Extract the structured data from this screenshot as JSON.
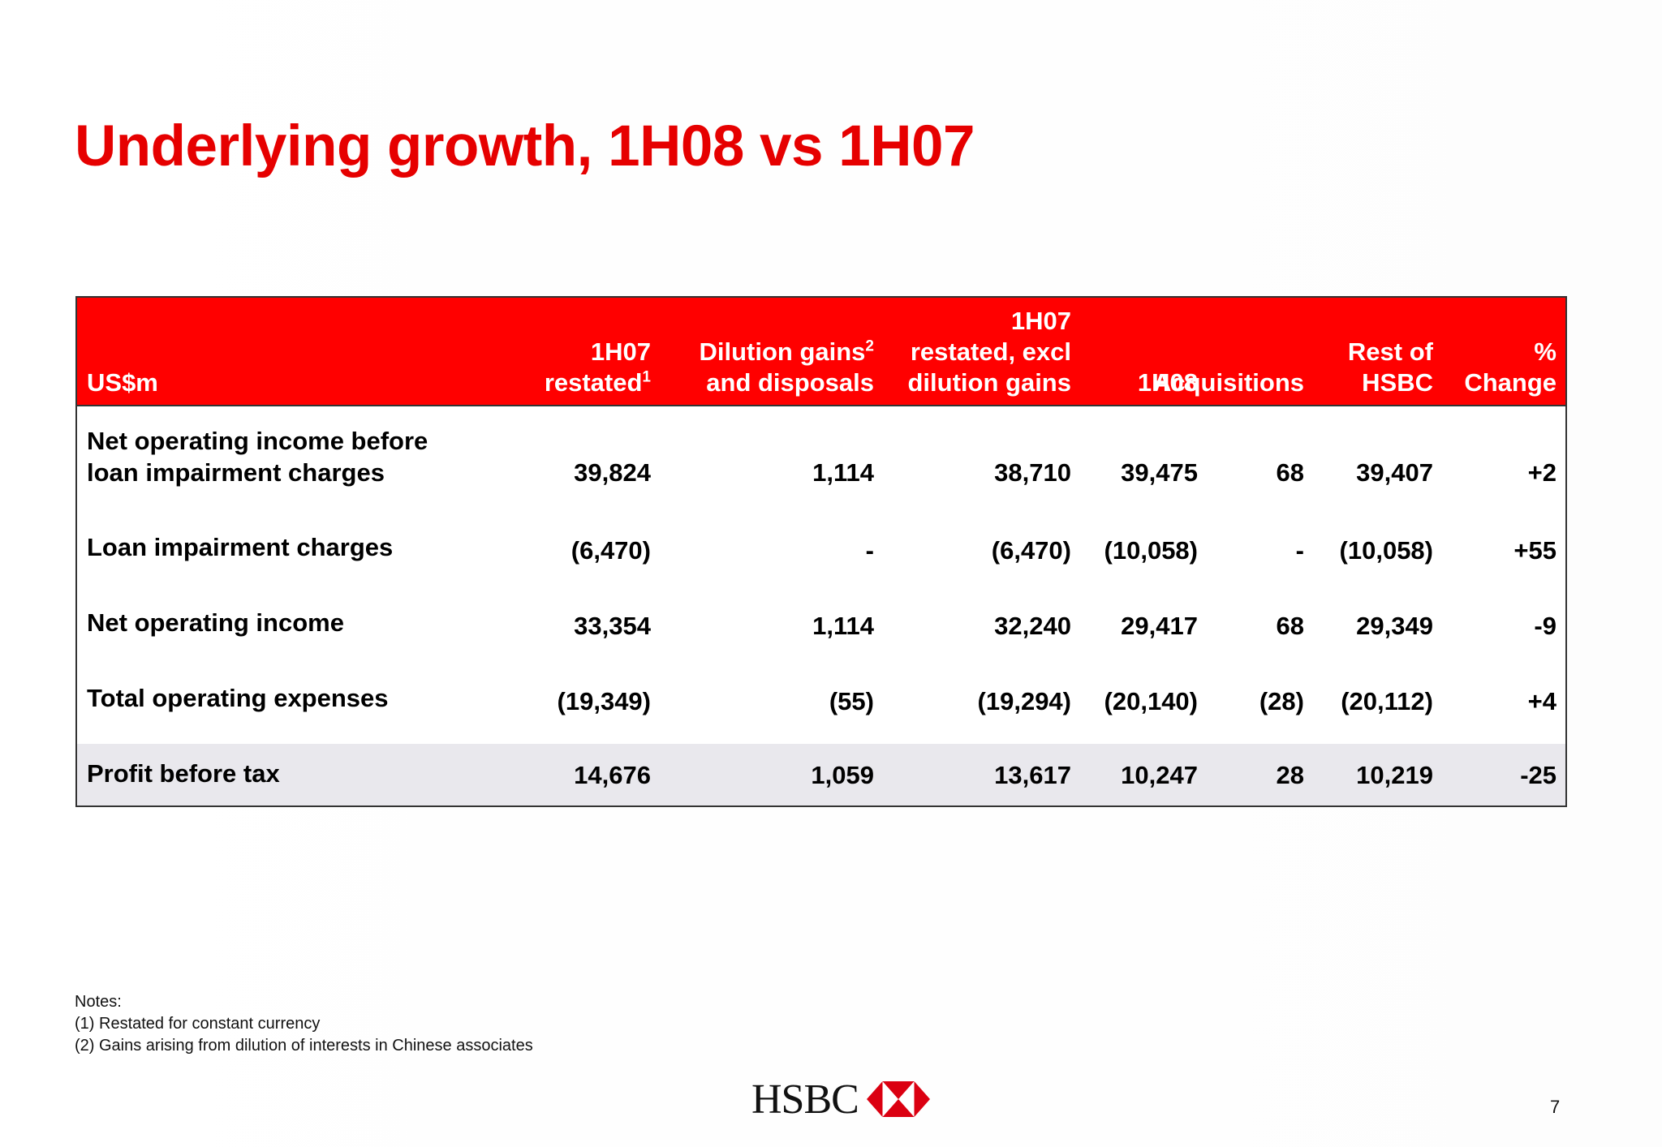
{
  "title": "Underlying growth, 1H08 vs 1H07",
  "table": {
    "headers": [
      {
        "lines": [
          "US$m"
        ],
        "sup": ""
      },
      {
        "lines": [
          "1H07",
          "restated"
        ],
        "sup": "1"
      },
      {
        "lines": [
          "Dilution gains",
          "and disposals"
        ],
        "sup": "2"
      },
      {
        "lines": [
          "1H07",
          "restated, excl",
          "dilution gains"
        ],
        "sup": ""
      },
      {
        "lines": [
          "1H08"
        ],
        "sup": ""
      },
      {
        "lines": [
          "Acquisitions"
        ],
        "sup": ""
      },
      {
        "lines": [
          "Rest of",
          "HSBC"
        ],
        "sup": ""
      },
      {
        "lines": [
          "%",
          "Change"
        ],
        "sup": ""
      }
    ],
    "rows": [
      {
        "label": [
          "Net operating income before",
          "loan impairment charges"
        ],
        "values": [
          "39,824",
          "1,114",
          "38,710",
          "39,475",
          "68",
          "39,407",
          "+2"
        ]
      },
      {
        "label": [
          "Loan impairment charges"
        ],
        "values": [
          "(6,470)",
          "-",
          "(6,470)",
          "(10,058)",
          "-",
          "(10,058)",
          "+55"
        ]
      },
      {
        "label": [
          "Net operating income"
        ],
        "values": [
          "33,354",
          "1,114",
          "32,240",
          "29,417",
          "68",
          "29,349",
          "-9"
        ]
      },
      {
        "label": [
          "Total operating expenses"
        ],
        "values": [
          "(19,349)",
          "(55)",
          "(19,294)",
          "(20,140)",
          "(28)",
          "(20,112)",
          "+4"
        ]
      },
      {
        "label": [
          "Profit before tax"
        ],
        "values": [
          "14,676",
          "1,059",
          "13,617",
          "10,247",
          "28",
          "10,219",
          "-25"
        ]
      }
    ]
  },
  "notes": {
    "heading": "Notes:",
    "items": [
      "(1) Restated for constant currency",
      "(2) Gains arising from dilution of interests in Chinese associates"
    ]
  },
  "logo": {
    "text": "HSBC",
    "icon": "hsbc-hexagon-icon",
    "colors": {
      "red": "#db0011",
      "white": "#ffffff"
    }
  },
  "page_number": "7",
  "colors": {
    "title": "#e60000",
    "header_bg": "#ff0000",
    "shaded_row": "#e9e8ed"
  }
}
